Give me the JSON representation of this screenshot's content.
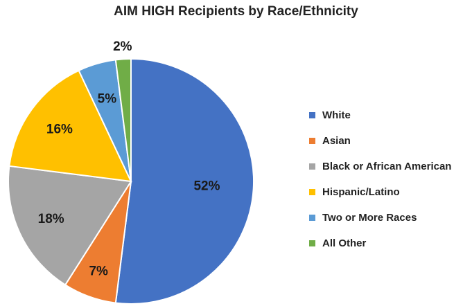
{
  "chart_data": {
    "type": "pie",
    "title": "AIM HIGH Recipients by Race/Ethnicity",
    "categories": [
      "White",
      "Asian",
      "Black or African American",
      "Hispanic/Latino",
      "Two or More Races",
      "All Other"
    ],
    "values": [
      52,
      7,
      18,
      16,
      5,
      2
    ],
    "labels": [
      "52%",
      "7%",
      "18%",
      "16%",
      "5%",
      "2%"
    ],
    "colors": [
      "#4472C4",
      "#ED7D31",
      "#A5A5A5",
      "#FFC000",
      "#5B9BD5",
      "#70AD47"
    ],
    "legend_position": "right",
    "start_angle": "top, clockwise"
  }
}
